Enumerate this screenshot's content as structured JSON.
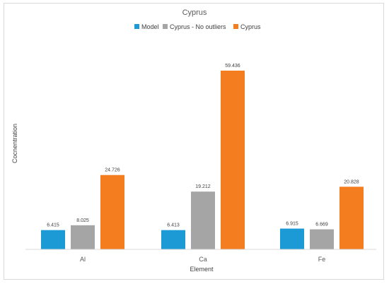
{
  "chart_data": {
    "type": "bar",
    "title": "Cyprus",
    "xlabel": "Element",
    "ylabel": "Cocnentration",
    "categories": [
      "Al",
      "Ca",
      "Fe"
    ],
    "series": [
      {
        "name": "Model",
        "color": "#1b9ad6",
        "values": [
          6.415,
          6.413,
          6.915
        ],
        "labels": [
          "6.415",
          "6.413",
          "6.915"
        ]
      },
      {
        "name": "Cyprus - No outliers",
        "color": "#a5a5a5",
        "values": [
          8.025,
          19.212,
          6.669
        ],
        "labels": [
          "8.025",
          "19.212",
          "6.669"
        ]
      },
      {
        "name": "Cyprus",
        "color": "#f47d20",
        "values": [
          24.726,
          59.436,
          20.828
        ],
        "labels": [
          "24.726",
          "59.436",
          "20.828"
        ]
      }
    ],
    "ylim": [
      0,
      59.436
    ],
    "legend_position": "top",
    "grid": false
  }
}
